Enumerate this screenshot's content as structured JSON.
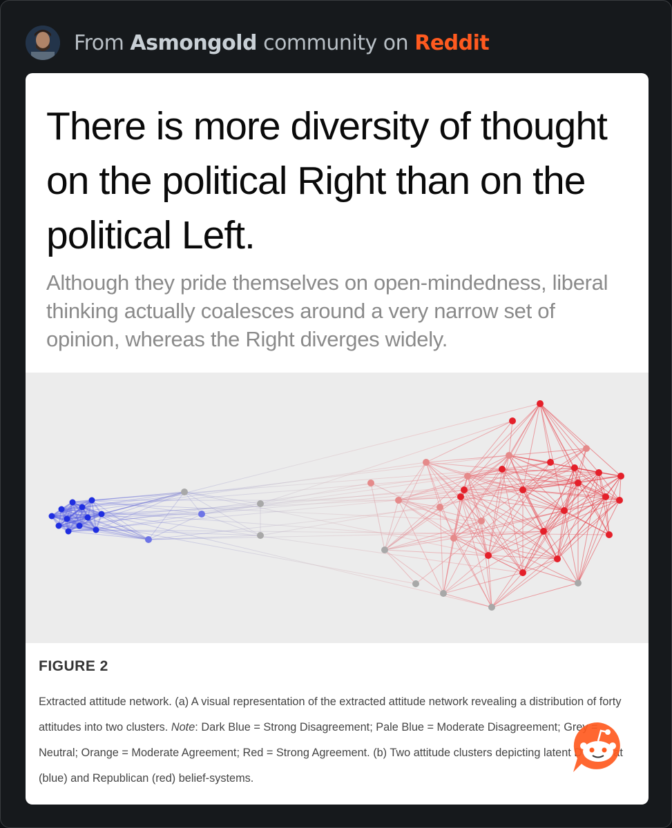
{
  "header": {
    "prefix": "From",
    "community": "Asmongold",
    "middle": "community on",
    "platform": "Reddit"
  },
  "post": {
    "headline": "There is more diversity of thought on the political Right than on the political Left.",
    "subhead": "Although they pride themselves on open-mindedness, liberal thinking actually coalesces around a very narrow set of opinion, whereas the Right diverges widely."
  },
  "figure": {
    "label": "FIGURE 2",
    "caption_part1": "Extracted attitude network. (a) A visual representation of the extracted attitude network revealing a distribution of forty attitudes into two clusters. ",
    "caption_note": "Note",
    "caption_part2": ": Dark Blue = Strong Disagreement; Pale Blue = Moderate Disagreement; Grey = Neutral; Orange = Moderate Agreement; Red = Strong Agreement. (b) Two attitude clusters depicting latent Democrat (blue) and Republican (red) belief-systems.",
    "colors": {
      "dark_blue": "#1f2ee0",
      "pale_blue": "#6d74e6",
      "grey": "#a8a8a8",
      "orange": "#e58a8a",
      "red": "#e4202a"
    }
  },
  "icons": {
    "avatar": "user-avatar",
    "badge": "reddit-snoo-icon"
  },
  "colors": {
    "background": "#0e1114",
    "card": "#ffffff",
    "accent": "#ff5a1f"
  }
}
